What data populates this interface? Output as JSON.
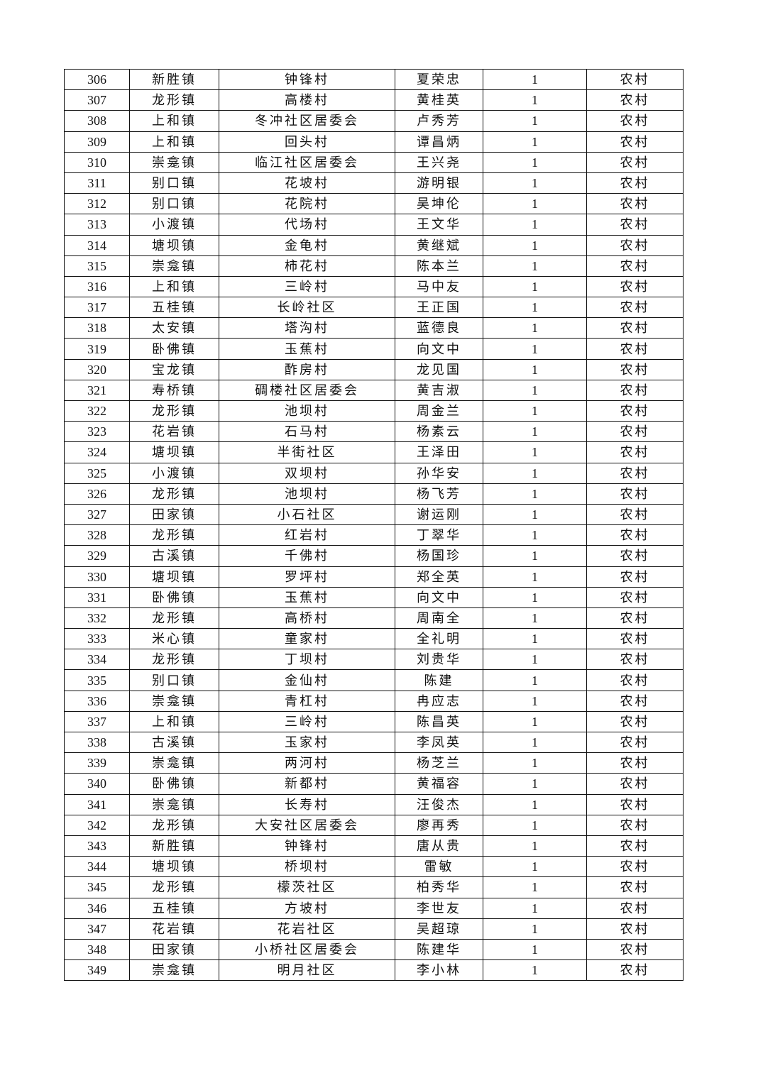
{
  "rows": [
    [
      "306",
      "新胜镇",
      "钟锋村",
      "夏荣忠",
      "1",
      "农村"
    ],
    [
      "307",
      "龙形镇",
      "高楼村",
      "黄桂英",
      "1",
      "农村"
    ],
    [
      "308",
      "上和镇",
      "冬冲社区居委会",
      "卢秀芳",
      "1",
      "农村"
    ],
    [
      "309",
      "上和镇",
      "回头村",
      "谭昌炳",
      "1",
      "农村"
    ],
    [
      "310",
      "崇龛镇",
      "临江社区居委会",
      "王兴尧",
      "1",
      "农村"
    ],
    [
      "311",
      "别口镇",
      "花坡村",
      "游明银",
      "1",
      "农村"
    ],
    [
      "312",
      "别口镇",
      "花院村",
      "吴坤伦",
      "1",
      "农村"
    ],
    [
      "313",
      "小渡镇",
      "代场村",
      "王文华",
      "1",
      "农村"
    ],
    [
      "314",
      "塘坝镇",
      "金龟村",
      "黄继斌",
      "1",
      "农村"
    ],
    [
      "315",
      "崇龛镇",
      "柿花村",
      "陈本兰",
      "1",
      "农村"
    ],
    [
      "316",
      "上和镇",
      "三岭村",
      "马中友",
      "1",
      "农村"
    ],
    [
      "317",
      "五桂镇",
      "长岭社区",
      "王正国",
      "1",
      "农村"
    ],
    [
      "318",
      "太安镇",
      "塔沟村",
      "蓝德良",
      "1",
      "农村"
    ],
    [
      "319",
      "卧佛镇",
      "玉蕉村",
      "向文中",
      "1",
      "农村"
    ],
    [
      "320",
      "宝龙镇",
      "酢房村",
      "龙见国",
      "1",
      "农村"
    ],
    [
      "321",
      "寿桥镇",
      "碉楼社区居委会",
      "黄吉淑",
      "1",
      "农村"
    ],
    [
      "322",
      "龙形镇",
      "池坝村",
      "周金兰",
      "1",
      "农村"
    ],
    [
      "323",
      "花岩镇",
      "石马村",
      "杨素云",
      "1",
      "农村"
    ],
    [
      "324",
      "塘坝镇",
      "半街社区",
      "王泽田",
      "1",
      "农村"
    ],
    [
      "325",
      "小渡镇",
      "双坝村",
      "孙华安",
      "1",
      "农村"
    ],
    [
      "326",
      "龙形镇",
      "池坝村",
      "杨飞芳",
      "1",
      "农村"
    ],
    [
      "327",
      "田家镇",
      "小石社区",
      "谢运刚",
      "1",
      "农村"
    ],
    [
      "328",
      "龙形镇",
      "红岩村",
      "丁翠华",
      "1",
      "农村"
    ],
    [
      "329",
      "古溪镇",
      "千佛村",
      "杨国珍",
      "1",
      "农村"
    ],
    [
      "330",
      "塘坝镇",
      "罗坪村",
      "郑全英",
      "1",
      "农村"
    ],
    [
      "331",
      "卧佛镇",
      "玉蕉村",
      "向文中",
      "1",
      "农村"
    ],
    [
      "332",
      "龙形镇",
      "高桥村",
      "周南全",
      "1",
      "农村"
    ],
    [
      "333",
      "米心镇",
      "童家村",
      "全礼明",
      "1",
      "农村"
    ],
    [
      "334",
      "龙形镇",
      "丁坝村",
      "刘贵华",
      "1",
      "农村"
    ],
    [
      "335",
      "别口镇",
      "金仙村",
      "陈建",
      "1",
      "农村"
    ],
    [
      "336",
      "崇龛镇",
      "青杠村",
      "冉应志",
      "1",
      "农村"
    ],
    [
      "337",
      "上和镇",
      "三岭村",
      "陈昌英",
      "1",
      "农村"
    ],
    [
      "338",
      "古溪镇",
      "玉家村",
      "李凤英",
      "1",
      "农村"
    ],
    [
      "339",
      "崇龛镇",
      "两河村",
      "杨芝兰",
      "1",
      "农村"
    ],
    [
      "340",
      "卧佛镇",
      "新都村",
      "黄福容",
      "1",
      "农村"
    ],
    [
      "341",
      "崇龛镇",
      "长寿村",
      "汪俊杰",
      "1",
      "农村"
    ],
    [
      "342",
      "龙形镇",
      "大安社区居委会",
      "廖再秀",
      "1",
      "农村"
    ],
    [
      "343",
      "新胜镇",
      "钟锋村",
      "唐从贵",
      "1",
      "农村"
    ],
    [
      "344",
      "塘坝镇",
      "桥坝村",
      "雷敏",
      "1",
      "农村"
    ],
    [
      "345",
      "龙形镇",
      "檬茨社区",
      "柏秀华",
      "1",
      "农村"
    ],
    [
      "346",
      "五桂镇",
      "方坡村",
      "李世友",
      "1",
      "农村"
    ],
    [
      "347",
      "花岩镇",
      "花岩社区",
      "吴超琼",
      "1",
      "农村"
    ],
    [
      "348",
      "田家镇",
      "小桥社区居委会",
      "陈建华",
      "1",
      "农村"
    ],
    [
      "349",
      "崇龛镇",
      "明月社区",
      "李小林",
      "1",
      "农村"
    ]
  ]
}
